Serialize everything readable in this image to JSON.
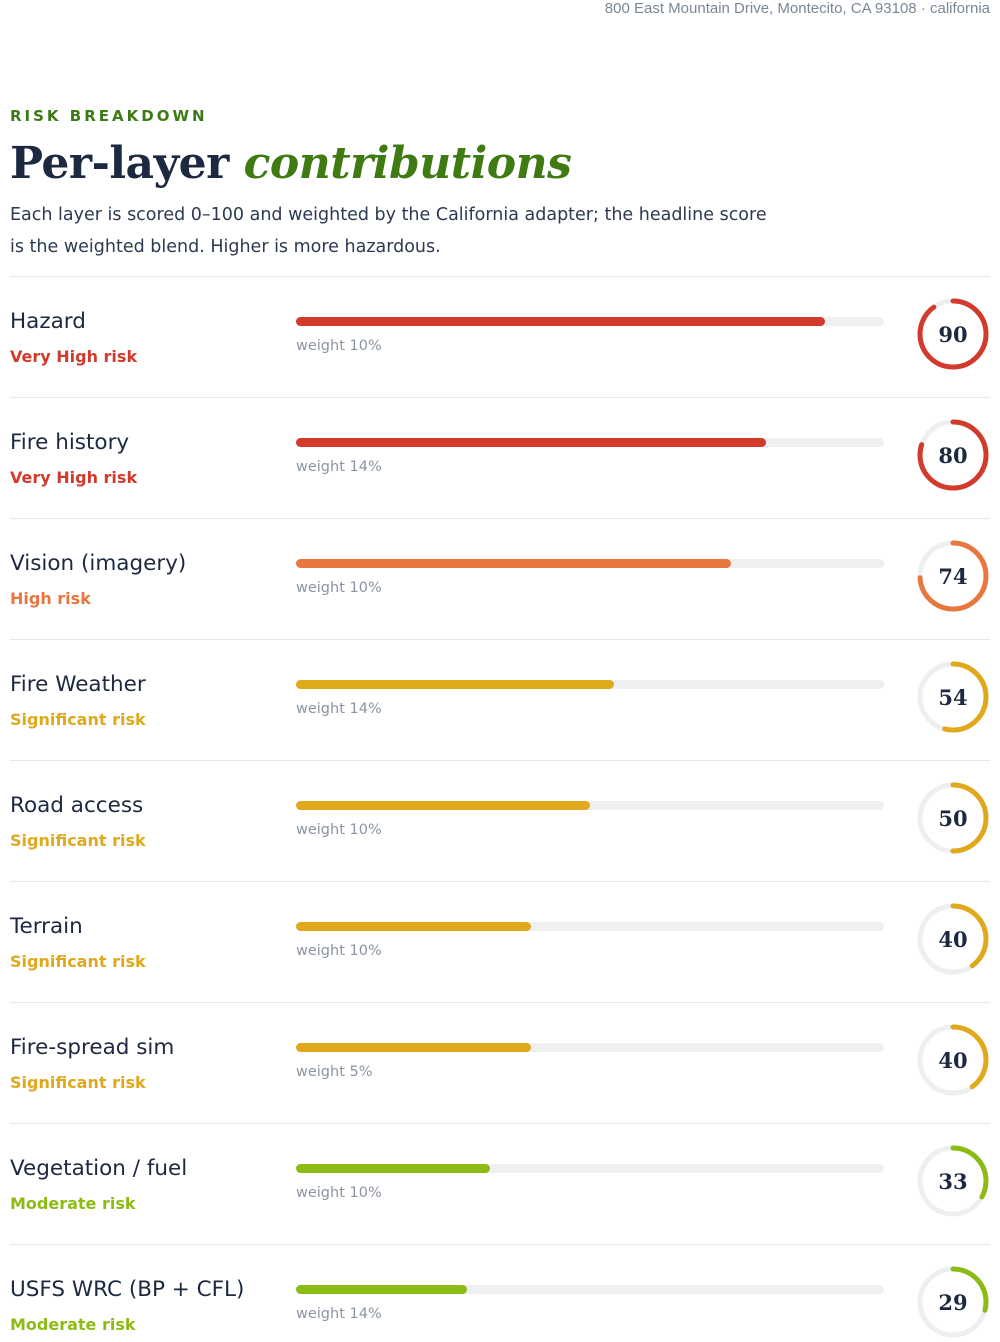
{
  "header": {
    "address": "800 East Mountain Drive, Montecito, CA 93108 · california"
  },
  "section": {
    "eyebrow": "RISK BREAKDOWN",
    "title_plain": "Per-layer",
    "title_accent": "contributions",
    "intro": "Each layer is scored 0–100 and weighted by the California adapter; the headline score is the weighted blend. Higher is more hazardous."
  },
  "colors": {
    "very_high": "#d23a2c",
    "high": "#e8763f",
    "significant": "#e0a91c",
    "moderate": "#8cbc14",
    "track": "#eeeff1"
  },
  "layers": [
    {
      "name": "Hazard",
      "level": "Very High risk",
      "level_key": "very_high",
      "weight": "weight 10%",
      "score": 90
    },
    {
      "name": "Fire history",
      "level": "Very High risk",
      "level_key": "very_high",
      "weight": "weight 14%",
      "score": 80
    },
    {
      "name": "Vision (imagery)",
      "level": "High risk",
      "level_key": "high",
      "weight": "weight 10%",
      "score": 74
    },
    {
      "name": "Fire Weather",
      "level": "Significant risk",
      "level_key": "significant",
      "weight": "weight 14%",
      "score": 54
    },
    {
      "name": "Road access",
      "level": "Significant risk",
      "level_key": "significant",
      "weight": "weight 10%",
      "score": 50
    },
    {
      "name": "Terrain",
      "level": "Significant risk",
      "level_key": "significant",
      "weight": "weight 10%",
      "score": 40
    },
    {
      "name": "Fire-spread sim",
      "level": "Significant risk",
      "level_key": "significant",
      "weight": "weight 5%",
      "score": 40
    },
    {
      "name": "Vegetation / fuel",
      "level": "Moderate risk",
      "level_key": "moderate",
      "weight": "weight 10%",
      "score": 33
    },
    {
      "name": "USFS WRC (BP + CFL)",
      "level": "Moderate risk",
      "level_key": "moderate",
      "weight": "weight 14%",
      "score": 29
    }
  ]
}
